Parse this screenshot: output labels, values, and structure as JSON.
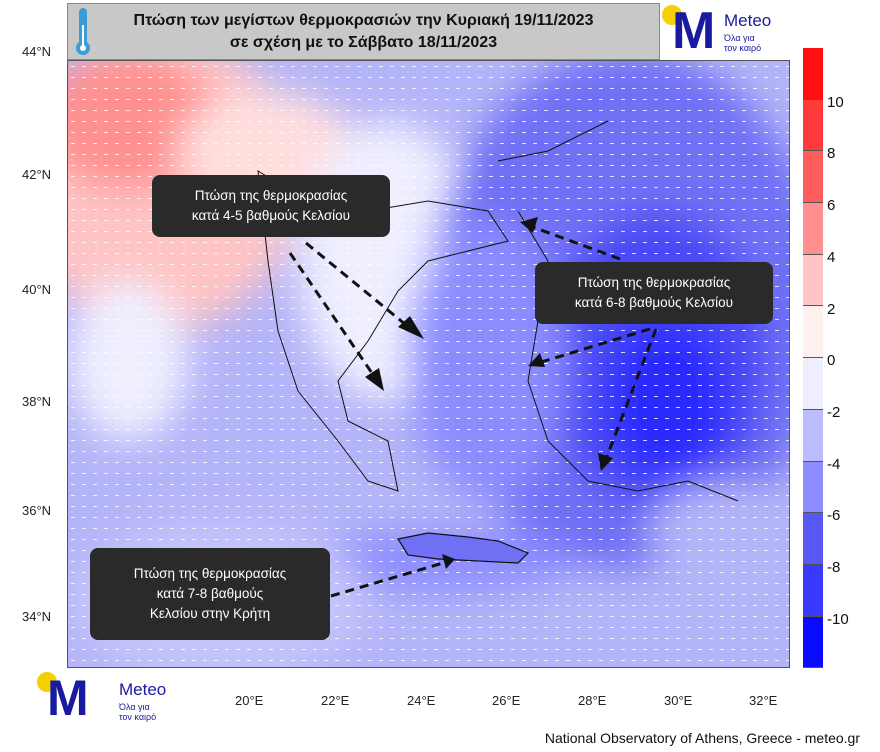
{
  "title": {
    "line1": "Πτώση των μεγίστων θερμοκρασιών την Κυριακή 19/11/2023",
    "line2": "σε σχέση με το Σάββατο 18/11/2023"
  },
  "logo": {
    "letter": "M",
    "name": "Meteo",
    "tagline1": "Όλα για",
    "tagline2": "τον καιρό"
  },
  "map": {
    "lat_ticks": [
      "44°N",
      "42°N",
      "40°N",
      "38°N",
      "36°N",
      "34°N"
    ],
    "lon_ticks": [
      "20°E",
      "22°E",
      "24°E",
      "26°E",
      "28°E",
      "30°E",
      "32°E"
    ]
  },
  "colorbar": {
    "labels": [
      "10",
      "8",
      "6",
      "4",
      "2",
      "0",
      "-2",
      "-4",
      "-6",
      "-8",
      "-10"
    ],
    "colors": [
      "#ff1010",
      "#ff3a3a",
      "#ff5c5c",
      "#ff8e8e",
      "#ffc4c4",
      "#fff0f0",
      "#eeeeff",
      "#bcbcff",
      "#8c8cff",
      "#5858f5",
      "#3a3aff",
      "#0a0aff"
    ]
  },
  "annotations": [
    {
      "line1": "Πτώση της θερμοκρασίας",
      "line2": "κατά 4-5 βαθμούς Κελσίου"
    },
    {
      "line1": "Πτώση της θερμοκρασίας",
      "line2": "κατά 6-8 βαθμούς Κελσίου"
    },
    {
      "line1": "Πτώση της θερμοκρασίας",
      "line2": "κατά 7-8 βαθμούς",
      "line3": "Κελσίου στην Κρήτη"
    }
  ],
  "footer": "National Observatory of Athens, Greece - meteo.gr"
}
